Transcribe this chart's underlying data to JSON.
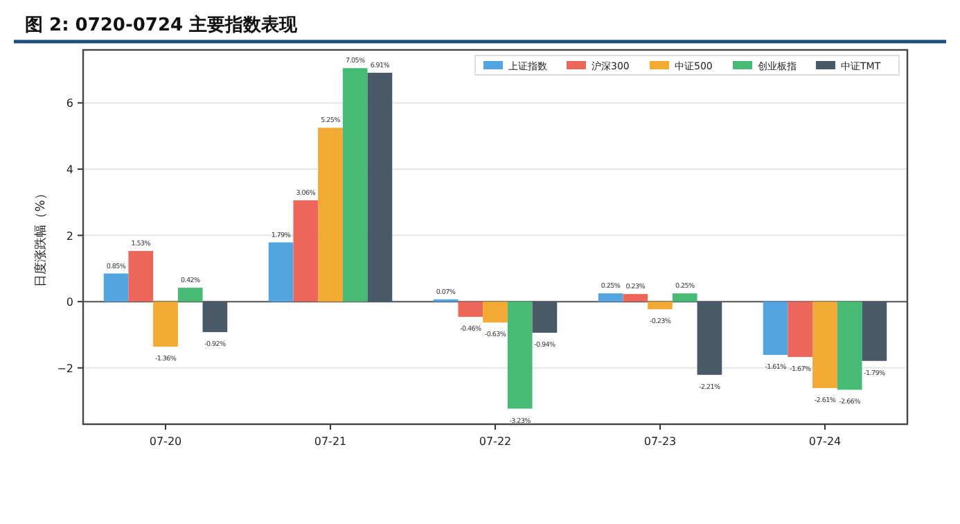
{
  "chart_data": {
    "type": "bar",
    "title": "图 2: 0720-0724 主要指数表现",
    "ylabel": "日度涨跌幅（%）",
    "categories": [
      "07-20",
      "07-21",
      "07-22",
      "07-23",
      "07-24"
    ],
    "series": [
      {
        "name": "上证指数",
        "color": "#52a5de",
        "values": [
          0.85,
          1.79,
          0.07,
          0.25,
          -1.61
        ],
        "value_labels": [
          "0.85%",
          "1.79%",
          "0.07%",
          "0.25%",
          "-1.61%"
        ]
      },
      {
        "name": "沪深300",
        "color": "#ec665a",
        "values": [
          1.53,
          3.06,
          -0.46,
          0.23,
          -1.67
        ],
        "value_labels": [
          "1.53%",
          "3.06%",
          "-0.46%",
          "0.23%",
          "-1.67%"
        ]
      },
      {
        "name": "中证500",
        "color": "#f3aa34",
        "values": [
          -1.36,
          5.25,
          -0.63,
          -0.23,
          -2.61
        ],
        "value_labels": [
          "-1.36%",
          "5.25%",
          "-0.63%",
          "-0.23%",
          "-2.61%"
        ]
      },
      {
        "name": "创业板指",
        "color": "#47ba76",
        "values": [
          0.42,
          7.05,
          -3.23,
          0.25,
          -2.66
        ],
        "value_labels": [
          "0.42%",
          "7.05%",
          "-3.23%",
          "0.25%",
          "-2.66%"
        ]
      },
      {
        "name": "中证TMT",
        "color": "#4a5968",
        "values": [
          -0.92,
          6.91,
          -0.94,
          -2.21,
          -1.79
        ],
        "value_labels": [
          "-0.92%",
          "6.91%",
          "-0.94%",
          "-2.21%",
          "-1.79%"
        ]
      }
    ],
    "ylim": [
      -3.7,
      7.6
    ],
    "yticks": [
      {
        "value": -2,
        "label": "−2"
      },
      0,
      2,
      4,
      6
    ],
    "grid": "y",
    "legend": "top right"
  }
}
